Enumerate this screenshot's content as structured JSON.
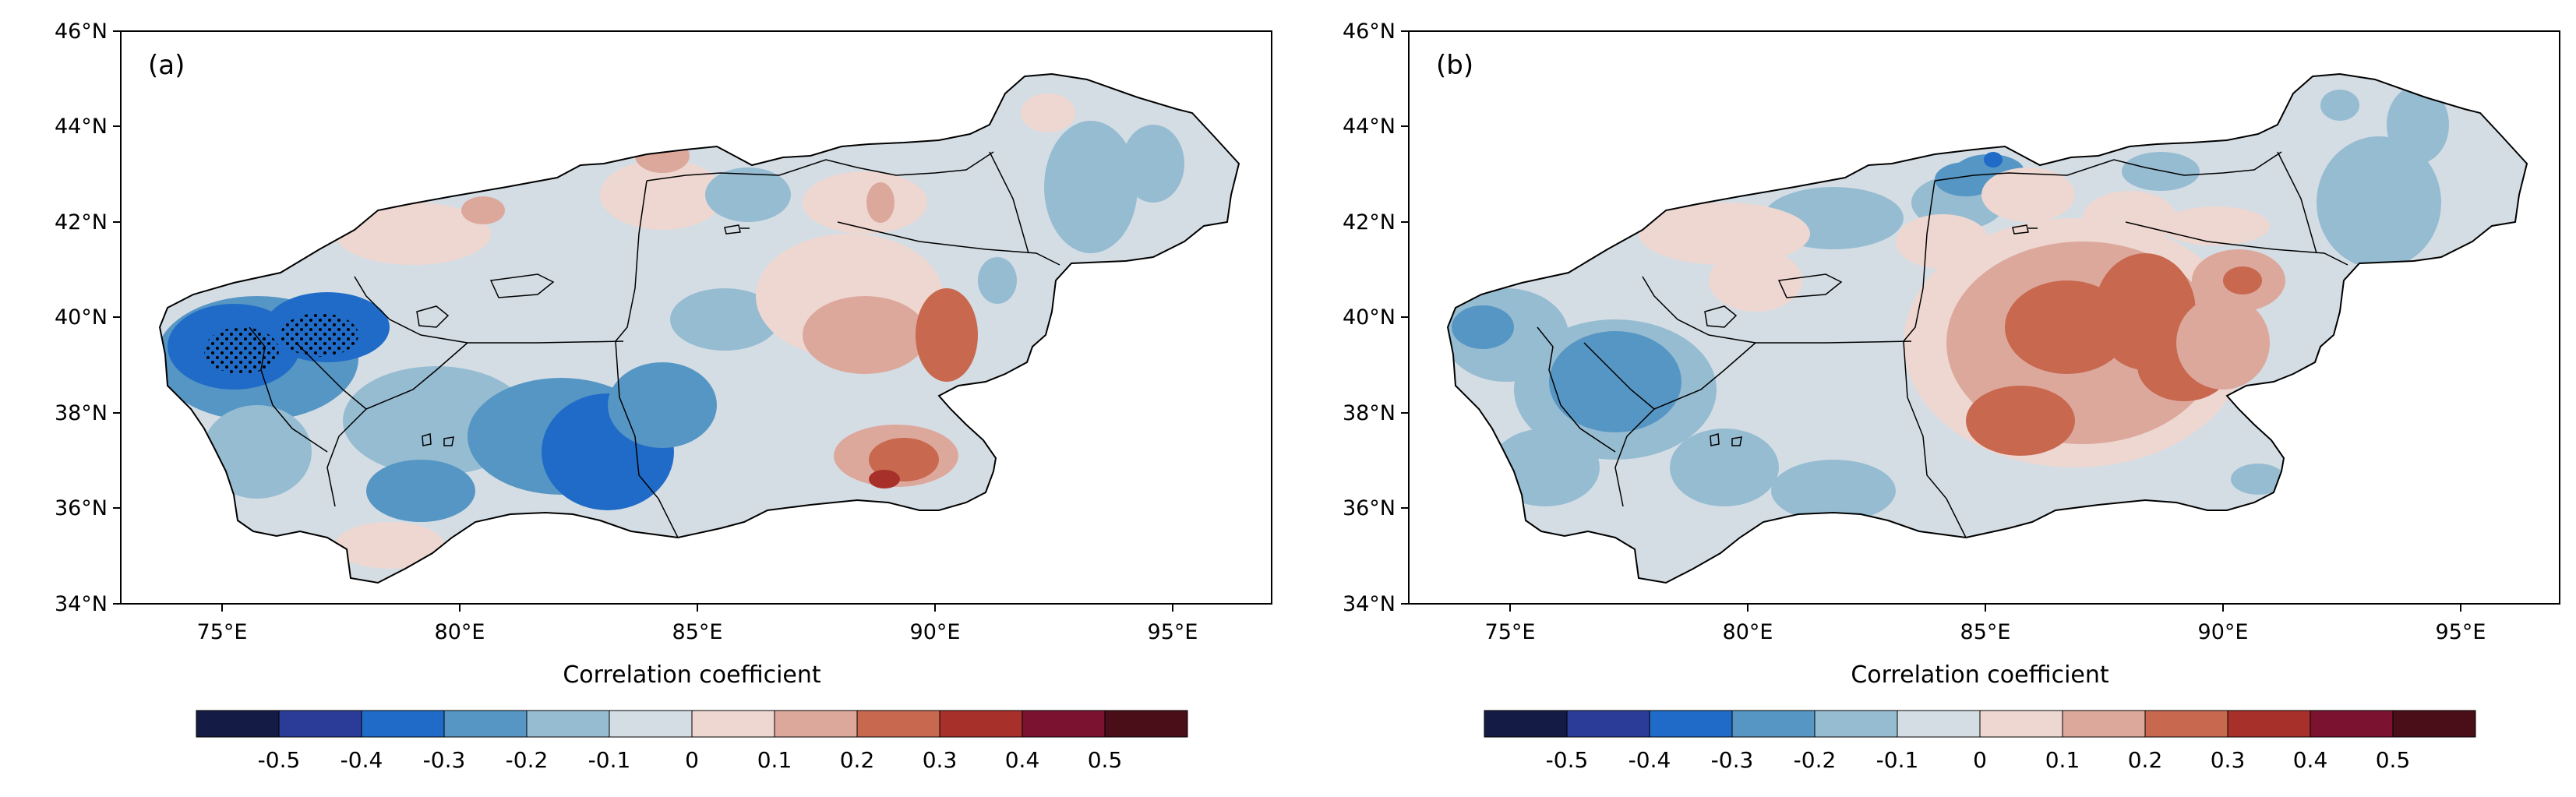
{
  "panels": [
    {
      "label": "(a)",
      "lat_ticks": [
        "46°N",
        "44°N",
        "42°N",
        "40°N",
        "38°N",
        "36°N",
        "34°N"
      ],
      "lon_ticks": [
        "75°E",
        "80°E",
        "85°E",
        "90°E",
        "95°E"
      ],
      "colorbar": {
        "title": "Correlation coefficient",
        "tick_labels": [
          "-0.5",
          "-0.4",
          "-0.3",
          "-0.2",
          "-0.1",
          "0",
          "0.1",
          "0.2",
          "0.3",
          "0.4",
          "0.5"
        ]
      }
    },
    {
      "label": "(b)",
      "lat_ticks": [
        "46°N",
        "44°N",
        "42°N",
        "40°N",
        "38°N",
        "36°N",
        "34°N"
      ],
      "lon_ticks": [
        "75°E",
        "80°E",
        "85°E",
        "90°E",
        "95°E"
      ],
      "colorbar": {
        "title": "Correlation coefficient",
        "tick_labels": [
          "-0.5",
          "-0.4",
          "-0.3",
          "-0.2",
          "-0.1",
          "0",
          "0.1",
          "0.2",
          "0.3",
          "0.4",
          "0.5"
        ]
      }
    }
  ],
  "colors": {
    "bins": [
      "#141c45",
      "#2a3c98",
      "#1f6bc7",
      "#5696c4",
      "#96bcd2",
      "#d4dde4",
      "#eed7d1",
      "#dda89c",
      "#c8684f",
      "#a8302a",
      "#7a1230",
      "#4a0e18"
    ]
  }
}
